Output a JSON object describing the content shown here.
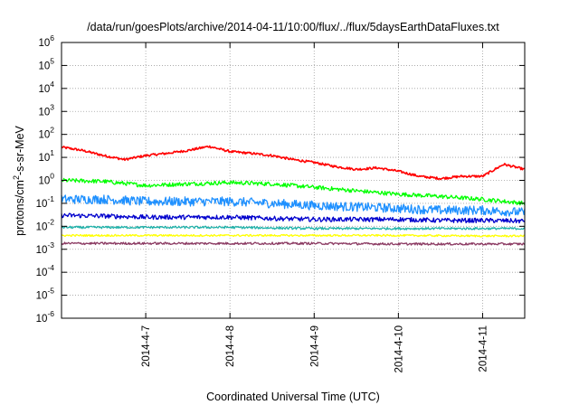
{
  "chart_data": {
    "type": "line",
    "title": "/data/run/goesPlots/archive/2014-04-11/10:00/flux/../flux/5daysEarthDataFluxes.txt",
    "xlabel": "Coordinated Universal Time (UTC)",
    "ylabel": {
      "prefix": "protons/cm",
      "sup": "2",
      "suffix": "-s-sr-MeV"
    },
    "yscale": "log",
    "ylim": [
      1e-06,
      1000000.0
    ],
    "xlim": [
      "2014-04-06 00:00",
      "2014-04-11 12:00"
    ],
    "grid": true,
    "x_ticks": [
      "2014-4-7",
      "2014-4-8",
      "2014-4-9",
      "2014-4-10",
      "2014-4-11"
    ],
    "y_ticks": [
      {
        "base": "10",
        "exp": "-6"
      },
      {
        "base": "10",
        "exp": "-5"
      },
      {
        "base": "10",
        "exp": "-4"
      },
      {
        "base": "10",
        "exp": "-3"
      },
      {
        "base": "10",
        "exp": "-2"
      },
      {
        "base": "10",
        "exp": "-1"
      },
      {
        "base": "10",
        "exp": "0"
      },
      {
        "base": "10",
        "exp": "1"
      },
      {
        "base": "10",
        "exp": "2"
      },
      {
        "base": "10",
        "exp": "3"
      },
      {
        "base": "10",
        "exp": "4"
      },
      {
        "base": "10",
        "exp": "5"
      },
      {
        "base": "10",
        "exp": "6"
      }
    ],
    "series": [
      {
        "color": "#ff0000",
        "x": [
          "2014-04-06 00:00",
          "2014-04-06 06:00",
          "2014-04-06 12:00",
          "2014-04-06 18:00",
          "2014-04-07 00:00",
          "2014-04-07 06:00",
          "2014-04-07 12:00",
          "2014-04-07 18:00",
          "2014-04-08 00:00",
          "2014-04-08 06:00",
          "2014-04-08 12:00",
          "2014-04-08 18:00",
          "2014-04-09 00:00",
          "2014-04-09 06:00",
          "2014-04-09 12:00",
          "2014-04-09 18:00",
          "2014-04-10 00:00",
          "2014-04-10 06:00",
          "2014-04-10 12:00",
          "2014-04-10 18:00",
          "2014-04-11 00:00",
          "2014-04-11 06:00",
          "2014-04-11 12:00"
        ],
        "y": [
          28,
          20,
          12,
          8,
          12,
          15,
          20,
          30,
          18,
          15,
          12,
          8,
          6,
          4,
          3,
          3.5,
          2.5,
          1.5,
          1.2,
          1.5,
          1.5,
          5,
          3
        ]
      },
      {
        "color": "#00ff00",
        "x": [
          "2014-04-06 00:00",
          "2014-04-06 12:00",
          "2014-04-07 00:00",
          "2014-04-07 12:00",
          "2014-04-08 00:00",
          "2014-04-08 12:00",
          "2014-04-09 00:00",
          "2014-04-09 12:00",
          "2014-04-10 00:00",
          "2014-04-10 12:00",
          "2014-04-11 00:00",
          "2014-04-11 12:00"
        ],
        "y": [
          1.0,
          0.9,
          0.6,
          0.7,
          0.8,
          0.7,
          0.5,
          0.35,
          0.25,
          0.2,
          0.15,
          0.1
        ]
      },
      {
        "color": "#1e90ff",
        "x": [
          "2014-04-06 00:00",
          "2014-04-06 12:00",
          "2014-04-07 00:00",
          "2014-04-07 12:00",
          "2014-04-08 00:00",
          "2014-04-08 12:00",
          "2014-04-09 00:00",
          "2014-04-09 12:00",
          "2014-04-10 00:00",
          "2014-04-10 12:00",
          "2014-04-11 00:00",
          "2014-04-11 12:00"
        ],
        "y": [
          0.15,
          0.15,
          0.12,
          0.12,
          0.12,
          0.1,
          0.08,
          0.07,
          0.06,
          0.05,
          0.05,
          0.04
        ]
      },
      {
        "color": "#0000cd",
        "x": [
          "2014-04-06 00:00",
          "2014-04-06 12:00",
          "2014-04-07 00:00",
          "2014-04-07 12:00",
          "2014-04-08 00:00",
          "2014-04-08 12:00",
          "2014-04-09 00:00",
          "2014-04-09 12:00",
          "2014-04-10 00:00",
          "2014-04-10 12:00",
          "2014-04-11 00:00",
          "2014-04-11 12:00"
        ],
        "y": [
          0.03,
          0.028,
          0.025,
          0.025,
          0.025,
          0.022,
          0.02,
          0.02,
          0.02,
          0.018,
          0.018,
          0.017
        ]
      },
      {
        "color": "#20b2aa",
        "x": [
          "2014-04-06 00:00",
          "2014-04-07 00:00",
          "2014-04-08 00:00",
          "2014-04-09 00:00",
          "2014-04-10 00:00",
          "2014-04-11 00:00",
          "2014-04-11 12:00"
        ],
        "y": [
          0.009,
          0.009,
          0.009,
          0.008,
          0.008,
          0.008,
          0.008
        ]
      },
      {
        "color": "#ffff00",
        "x": [
          "2014-04-06 00:00",
          "2014-04-07 00:00",
          "2014-04-08 00:00",
          "2014-04-09 00:00",
          "2014-04-10 00:00",
          "2014-04-11 00:00",
          "2014-04-11 12:00"
        ],
        "y": [
          0.004,
          0.004,
          0.004,
          0.004,
          0.004,
          0.0038,
          0.0038
        ]
      },
      {
        "color": "#8b3a62",
        "x": [
          "2014-04-06 00:00",
          "2014-04-07 00:00",
          "2014-04-08 00:00",
          "2014-04-09 00:00",
          "2014-04-10 00:00",
          "2014-04-11 00:00",
          "2014-04-11 12:00"
        ],
        "y": [
          0.0018,
          0.0018,
          0.0018,
          0.0018,
          0.0017,
          0.0017,
          0.0017
        ]
      }
    ]
  }
}
